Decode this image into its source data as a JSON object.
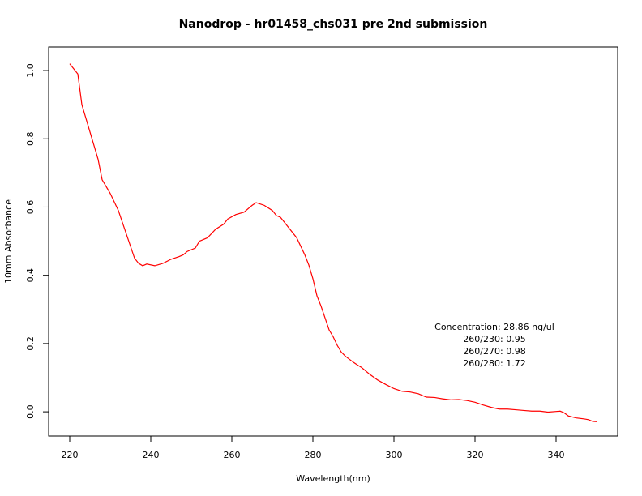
{
  "chart_data": {
    "type": "line",
    "title": "Nanodrop - hr01458_chs031 pre 2nd submission",
    "x_label": "Wavelength(nm)",
    "y_label": "10mm Absorbance",
    "annotation": [
      "Concentration: 28.86 ng/ul",
      "260/230: 0.95",
      "260/270: 0.98",
      "260/280: 1.72"
    ],
    "xlim": [
      214.8,
      355.2
    ],
    "ylim": [
      -0.071,
      1.069
    ],
    "xticks": [
      220,
      240,
      260,
      280,
      300,
      320,
      340
    ],
    "yticks": [
      {
        "value": 0,
        "label": "0.0"
      },
      0.2,
      0.4,
      0.6,
      0.8,
      {
        "value": 1,
        "label": "1.0"
      }
    ],
    "series": [
      {
        "color": "#ff0000",
        "x": [
          220,
          222,
          223,
          225,
          227,
          228,
          230,
          232,
          234,
          236,
          237,
          238,
          239,
          241,
          243,
          245,
          247,
          248,
          249,
          251,
          252,
          254,
          256,
          258,
          259,
          261,
          263,
          265,
          266,
          268,
          270,
          271,
          272,
          274,
          276,
          278,
          279,
          280,
          281,
          282,
          284,
          285,
          286,
          287,
          288,
          290,
          291,
          292,
          294,
          296,
          298,
          300,
          302,
          304,
          306,
          308,
          310,
          312,
          314,
          316,
          318,
          320,
          322,
          324,
          326,
          328,
          330,
          332,
          334,
          336,
          338,
          340,
          341,
          342,
          343,
          345,
          347,
          348,
          349,
          350
        ],
        "values": [
          1.02,
          0.99,
          0.9,
          0.82,
          0.74,
          0.68,
          0.64,
          0.59,
          0.52,
          0.45,
          0.435,
          0.428,
          0.433,
          0.428,
          0.435,
          0.447,
          0.455,
          0.46,
          0.47,
          0.48,
          0.5,
          0.51,
          0.535,
          0.55,
          0.565,
          0.578,
          0.585,
          0.605,
          0.613,
          0.605,
          0.59,
          0.575,
          0.57,
          0.54,
          0.51,
          0.46,
          0.43,
          0.39,
          0.34,
          0.31,
          0.24,
          0.22,
          0.195,
          0.175,
          0.163,
          0.145,
          0.137,
          0.13,
          0.11,
          0.093,
          0.08,
          0.068,
          0.06,
          0.058,
          0.053,
          0.043,
          0.042,
          0.038,
          0.035,
          0.036,
          0.033,
          0.028,
          0.02,
          0.013,
          0.008,
          0.008,
          0.006,
          0.004,
          0.002,
          0.002,
          -0.001,
          0.001,
          0.002,
          -0.003,
          -0.012,
          -0.018,
          -0.021,
          -0.023,
          -0.028,
          -0.029
        ]
      }
    ]
  }
}
